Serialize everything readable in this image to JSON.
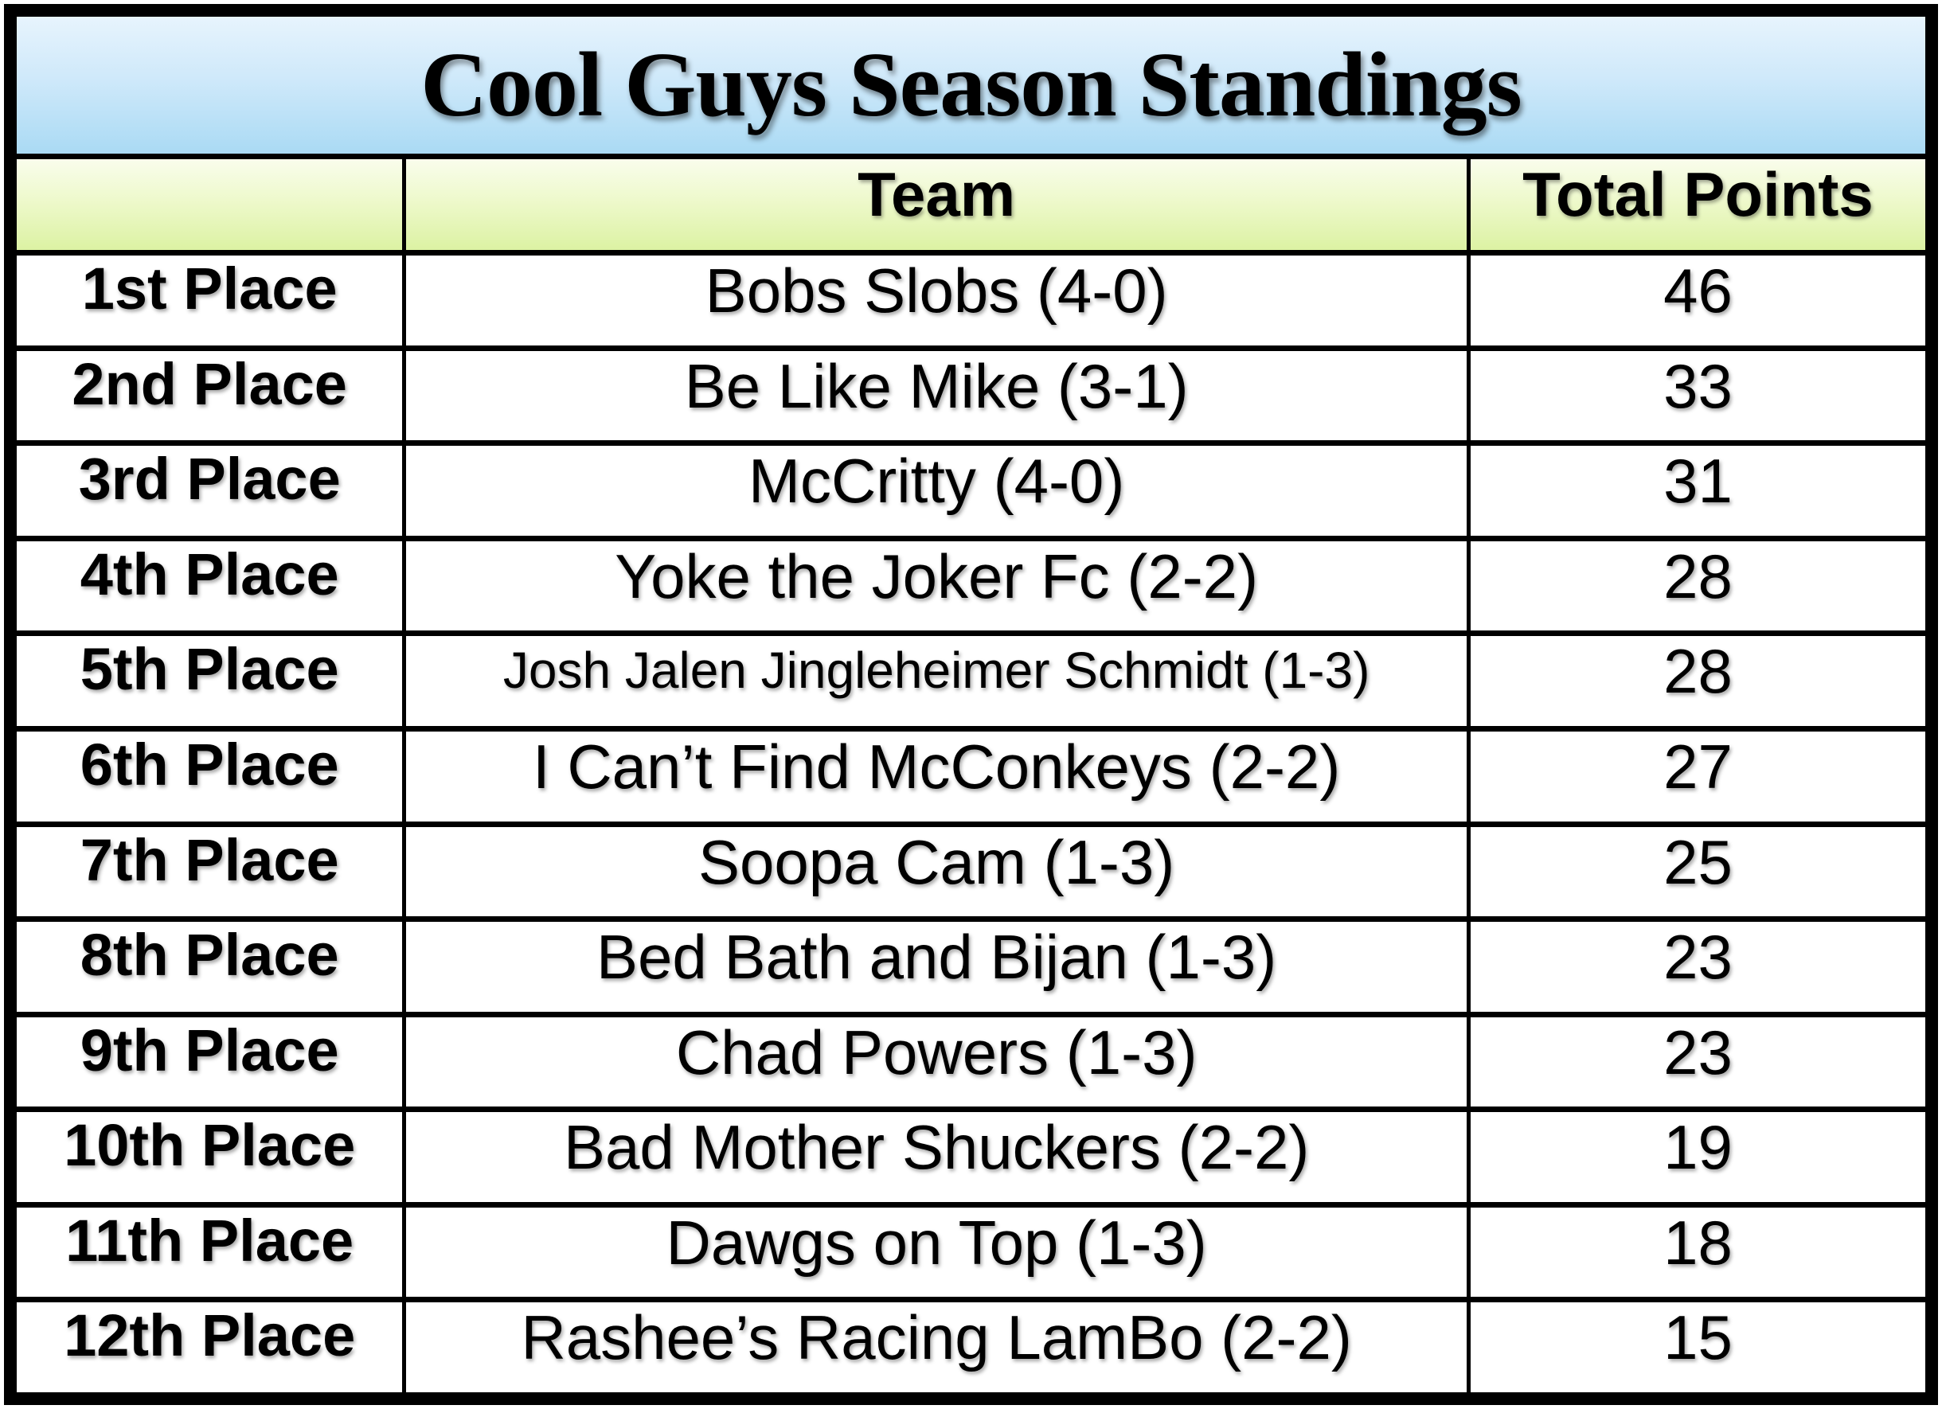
{
  "title": "Cool Guys Season Standings",
  "table": {
    "headers": {
      "place": "",
      "team": "Team",
      "points": "Total Points"
    },
    "rows": [
      {
        "place": "1st Place",
        "team": "Bobs Slobs (4-0)",
        "points": "46"
      },
      {
        "place": "2nd Place",
        "team": "Be Like Mike (3-1)",
        "points": "33"
      },
      {
        "place": "3rd Place",
        "team": "McCritty (4-0)",
        "points": "31"
      },
      {
        "place": "4th Place",
        "team": "Yoke the Joker Fc (2-2)",
        "points": "28"
      },
      {
        "place": "5th Place",
        "team": "Josh Jalen Jingleheimer Schmidt (1-3)",
        "points": "28"
      },
      {
        "place": "6th Place",
        "team": "I Can’t Find McConkeys (2-2)",
        "points": "27"
      },
      {
        "place": "7th Place",
        "team": "Soopa Cam (1-3)",
        "points": "25"
      },
      {
        "place": "8th Place",
        "team": "Bed Bath and Bijan (1-3)",
        "points": "23"
      },
      {
        "place": "9th Place",
        "team": "Chad Powers (1-3)",
        "points": "23"
      },
      {
        "place": "10th Place",
        "team": "Bad Mother Shuckers (2-2)",
        "points": "19"
      },
      {
        "place": "11th Place",
        "team": "Dawgs on Top (1-3)",
        "points": "18"
      },
      {
        "place": "12th Place",
        "team": "Rashee’s Racing LamBo (2-2)",
        "points": "15"
      }
    ]
  },
  "colors": {
    "border": "#000000",
    "title_gradient_top": "#e7f4fd",
    "title_gradient_bottom": "#aadaf4",
    "header_gradient_top": "#f9fdec",
    "header_gradient_bottom": "#dcf2a3",
    "row_background": "#ffffff",
    "text": "#000000"
  }
}
